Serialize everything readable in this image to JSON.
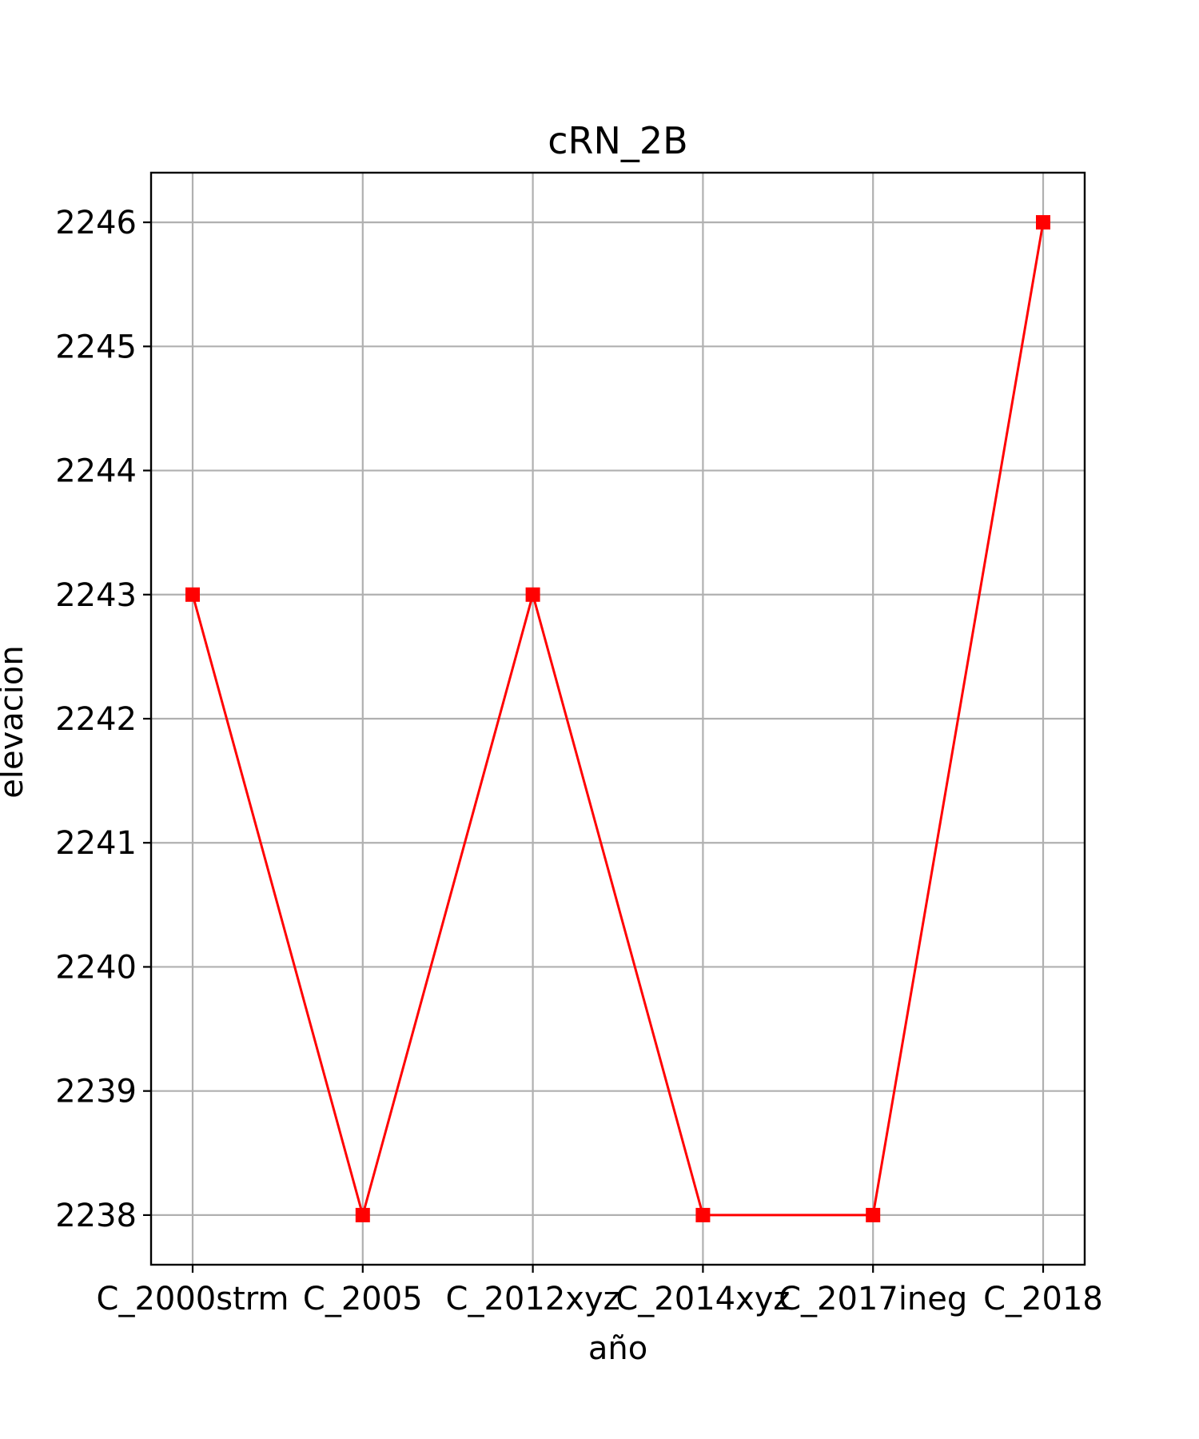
{
  "chart_data": {
    "type": "line",
    "title": "cRN_2B",
    "xlabel": "año",
    "ylabel": "elevacion",
    "categories": [
      "C_2000strm",
      "C_2005",
      "C_2012xyz",
      "C_2014xyz",
      "C_2017ineg",
      "C_2018"
    ],
    "series": [
      {
        "values": [
          2243,
          2238,
          2243,
          2238,
          2238,
          2246
        ],
        "color": "#ff0000",
        "marker": "square"
      }
    ],
    "yticks": [
      2238,
      2239,
      2240,
      2241,
      2242,
      2243,
      2244,
      2245,
      2246
    ],
    "ylim": [
      2237.6,
      2246.4
    ],
    "grid": true,
    "grid_color": "#b0b0b0",
    "line_color": "#ff0000"
  }
}
